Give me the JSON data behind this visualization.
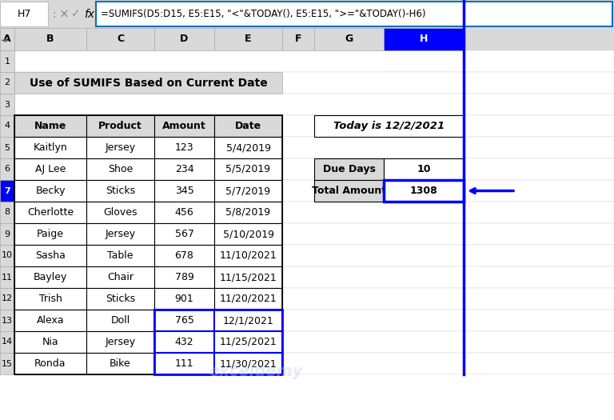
{
  "title": "Use of SUMIFS Based on Current Date",
  "formula_bar_cell": "H7",
  "formula_bar_text": "=SUMIFS(D5:D15, E5:E15, \"<\"&TODAY(), E5:E15, \">=\"&TODAY()-H6)",
  "col_headers": [
    "A",
    "B",
    "C",
    "D",
    "E",
    "F",
    "G",
    "H"
  ],
  "row_numbers": [
    1,
    2,
    3,
    4,
    5,
    6,
    7,
    8,
    9,
    10,
    11,
    12,
    13,
    14,
    15
  ],
  "table_headers": [
    "Name",
    "Product",
    "Amount",
    "Date"
  ],
  "table_data": [
    [
      "Kaitlyn",
      "Jersey",
      "123",
      "5/4/2019"
    ],
    [
      "AJ Lee",
      "Shoe",
      "234",
      "5/5/2019"
    ],
    [
      "Becky",
      "Sticks",
      "345",
      "5/7/2019"
    ],
    [
      "Cherlotte",
      "Gloves",
      "456",
      "5/8/2019"
    ],
    [
      "Paige",
      "Jersey",
      "567",
      "5/10/2019"
    ],
    [
      "Sasha",
      "Table",
      "678",
      "11/10/2021"
    ],
    [
      "Bayley",
      "Chair",
      "789",
      "11/15/2021"
    ],
    [
      "Trish",
      "Sticks",
      "901",
      "11/20/2021"
    ],
    [
      "Alexa",
      "Doll",
      "765",
      "12/1/2021"
    ],
    [
      "Nia",
      "Jersey",
      "432",
      "11/25/2021"
    ],
    [
      "Ronda",
      "Bike",
      "111",
      "11/30/2021"
    ]
  ],
  "today_text": "Today is 12/2/2021",
  "due_days_label": "Due Days",
  "due_days_value": "10",
  "total_amount_label": "Total Amount",
  "total_amount_value": "1308",
  "bg_color": "#ffffff",
  "header_bg": "#d9d9d9",
  "title_bg": "#d9d9d9",
  "blue_outline": "#0000ff",
  "cell_border": "#000000",
  "formula_bar_outline": "#0070c0",
  "highlighted_rows": [
    8,
    9,
    10
  ],
  "highlighted_color": "#0000ff"
}
